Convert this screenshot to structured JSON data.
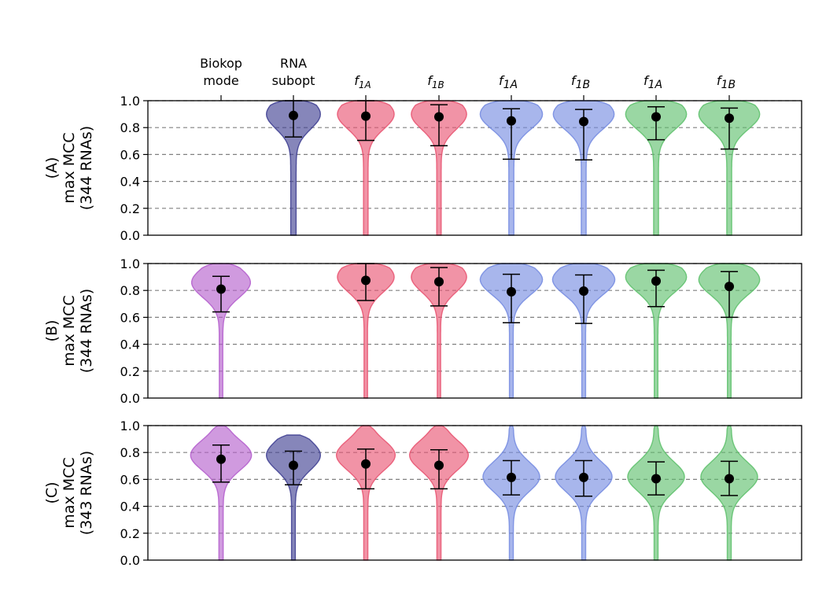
{
  "chart_data": {
    "type": "violin",
    "columns": [
      {
        "line1": "Biokop",
        "line2": "mode",
        "color": "#b35ccc"
      },
      {
        "line1": "RNA",
        "line2": "subopt",
        "color": "#3b3b8f"
      },
      {
        "base": "f",
        "sub": "1A",
        "color": "#e8516f"
      },
      {
        "base": "f",
        "sub": "1B",
        "color": "#e8516f"
      },
      {
        "base": "f",
        "sub": "1A",
        "color": "#7389e0"
      },
      {
        "base": "f",
        "sub": "1B",
        "color": "#7389e0"
      },
      {
        "base": "f",
        "sub": "1A",
        "color": "#5cbf6a"
      },
      {
        "base": "f",
        "sub": "1B",
        "color": "#5cbf6a"
      }
    ],
    "yticks": [
      "0.0",
      "0.2",
      "0.4",
      "0.6",
      "0.8",
      "1.0"
    ],
    "ylim": [
      0,
      1
    ],
    "panels": [
      {
        "ylabel": [
          "(A)",
          "max MCC",
          "(344 RNAs)"
        ],
        "violins": [
          null,
          {
            "mean": 0.89,
            "low": 0.73,
            "high": 1.0,
            "mode": 0.9,
            "width": 0.78,
            "tail": 0.1,
            "min": 0.0
          },
          {
            "mean": 0.885,
            "low": 0.705,
            "high": 1.0,
            "mode": 0.9,
            "width": 0.82,
            "tail": 0.08,
            "min": 0.0
          },
          {
            "mean": 0.88,
            "low": 0.665,
            "high": 0.97,
            "mode": 0.9,
            "width": 0.8,
            "tail": 0.08,
            "min": 0.0
          },
          {
            "mean": 0.85,
            "low": 0.565,
            "high": 0.94,
            "mode": 0.9,
            "width": 0.9,
            "tail": 0.08,
            "min": 0.0
          },
          {
            "mean": 0.845,
            "low": 0.56,
            "high": 0.935,
            "mode": 0.9,
            "width": 0.88,
            "tail": 0.08,
            "min": 0.0
          },
          {
            "mean": 0.88,
            "low": 0.71,
            "high": 0.955,
            "mode": 0.9,
            "width": 0.88,
            "tail": 0.08,
            "min": 0.0
          },
          {
            "mean": 0.87,
            "low": 0.64,
            "high": 0.945,
            "mode": 0.9,
            "width": 0.88,
            "tail": 0.08,
            "min": 0.0
          }
        ]
      },
      {
        "ylabel": [
          "(B)",
          "max MCC",
          "(344 RNAs)"
        ],
        "violins": [
          {
            "mean": 0.81,
            "low": 0.64,
            "high": 0.905,
            "mode": 0.86,
            "width": 0.85,
            "tail": 0.06,
            "min": 0.0
          },
          null,
          {
            "mean": 0.875,
            "low": 0.725,
            "high": 1.0,
            "mode": 0.9,
            "width": 0.82,
            "tail": 0.06,
            "min": 0.0
          },
          {
            "mean": 0.865,
            "low": 0.685,
            "high": 0.97,
            "mode": 0.9,
            "width": 0.8,
            "tail": 0.06,
            "min": 0.0
          },
          {
            "mean": 0.79,
            "low": 0.56,
            "high": 0.92,
            "mode": 0.88,
            "width": 0.9,
            "tail": 0.06,
            "min": 0.0
          },
          {
            "mean": 0.795,
            "low": 0.555,
            "high": 0.915,
            "mode": 0.88,
            "width": 0.9,
            "tail": 0.06,
            "min": 0.0
          },
          {
            "mean": 0.87,
            "low": 0.68,
            "high": 0.95,
            "mode": 0.9,
            "width": 0.88,
            "tail": 0.06,
            "min": 0.0
          },
          {
            "mean": 0.83,
            "low": 0.6,
            "high": 0.94,
            "mode": 0.88,
            "width": 0.88,
            "tail": 0.06,
            "min": 0.0
          }
        ]
      },
      {
        "ylabel": [
          "(C)",
          "max MCC",
          "(343 RNAs)"
        ],
        "violins": [
          {
            "mean": 0.75,
            "low": 0.58,
            "high": 0.855,
            "mode": 0.78,
            "width": 0.88,
            "tail": 0.07,
            "min": 0.0
          },
          {
            "mean": 0.705,
            "low": 0.56,
            "high": 0.81,
            "mode": 0.78,
            "width": 0.78,
            "tail": 0.07,
            "min": 0.0,
            "max": 0.93
          },
          {
            "mean": 0.715,
            "low": 0.53,
            "high": 0.825,
            "mode": 0.78,
            "width": 0.85,
            "tail": 0.07,
            "min": 0.0
          },
          {
            "mean": 0.705,
            "low": 0.53,
            "high": 0.82,
            "mode": 0.78,
            "width": 0.85,
            "tail": 0.07,
            "min": 0.0
          },
          {
            "mean": 0.615,
            "low": 0.485,
            "high": 0.74,
            "mode": 0.62,
            "width": 0.82,
            "tail": 0.07,
            "min": 0.0
          },
          {
            "mean": 0.615,
            "low": 0.475,
            "high": 0.74,
            "mode": 0.62,
            "width": 0.82,
            "tail": 0.07,
            "min": 0.0
          },
          {
            "mean": 0.605,
            "low": 0.485,
            "high": 0.73,
            "mode": 0.62,
            "width": 0.82,
            "tail": 0.07,
            "min": 0.0
          },
          {
            "mean": 0.605,
            "low": 0.48,
            "high": 0.735,
            "mode": 0.62,
            "width": 0.82,
            "tail": 0.07,
            "min": 0.0
          }
        ]
      }
    ],
    "grid": "horizontal-dashed"
  }
}
